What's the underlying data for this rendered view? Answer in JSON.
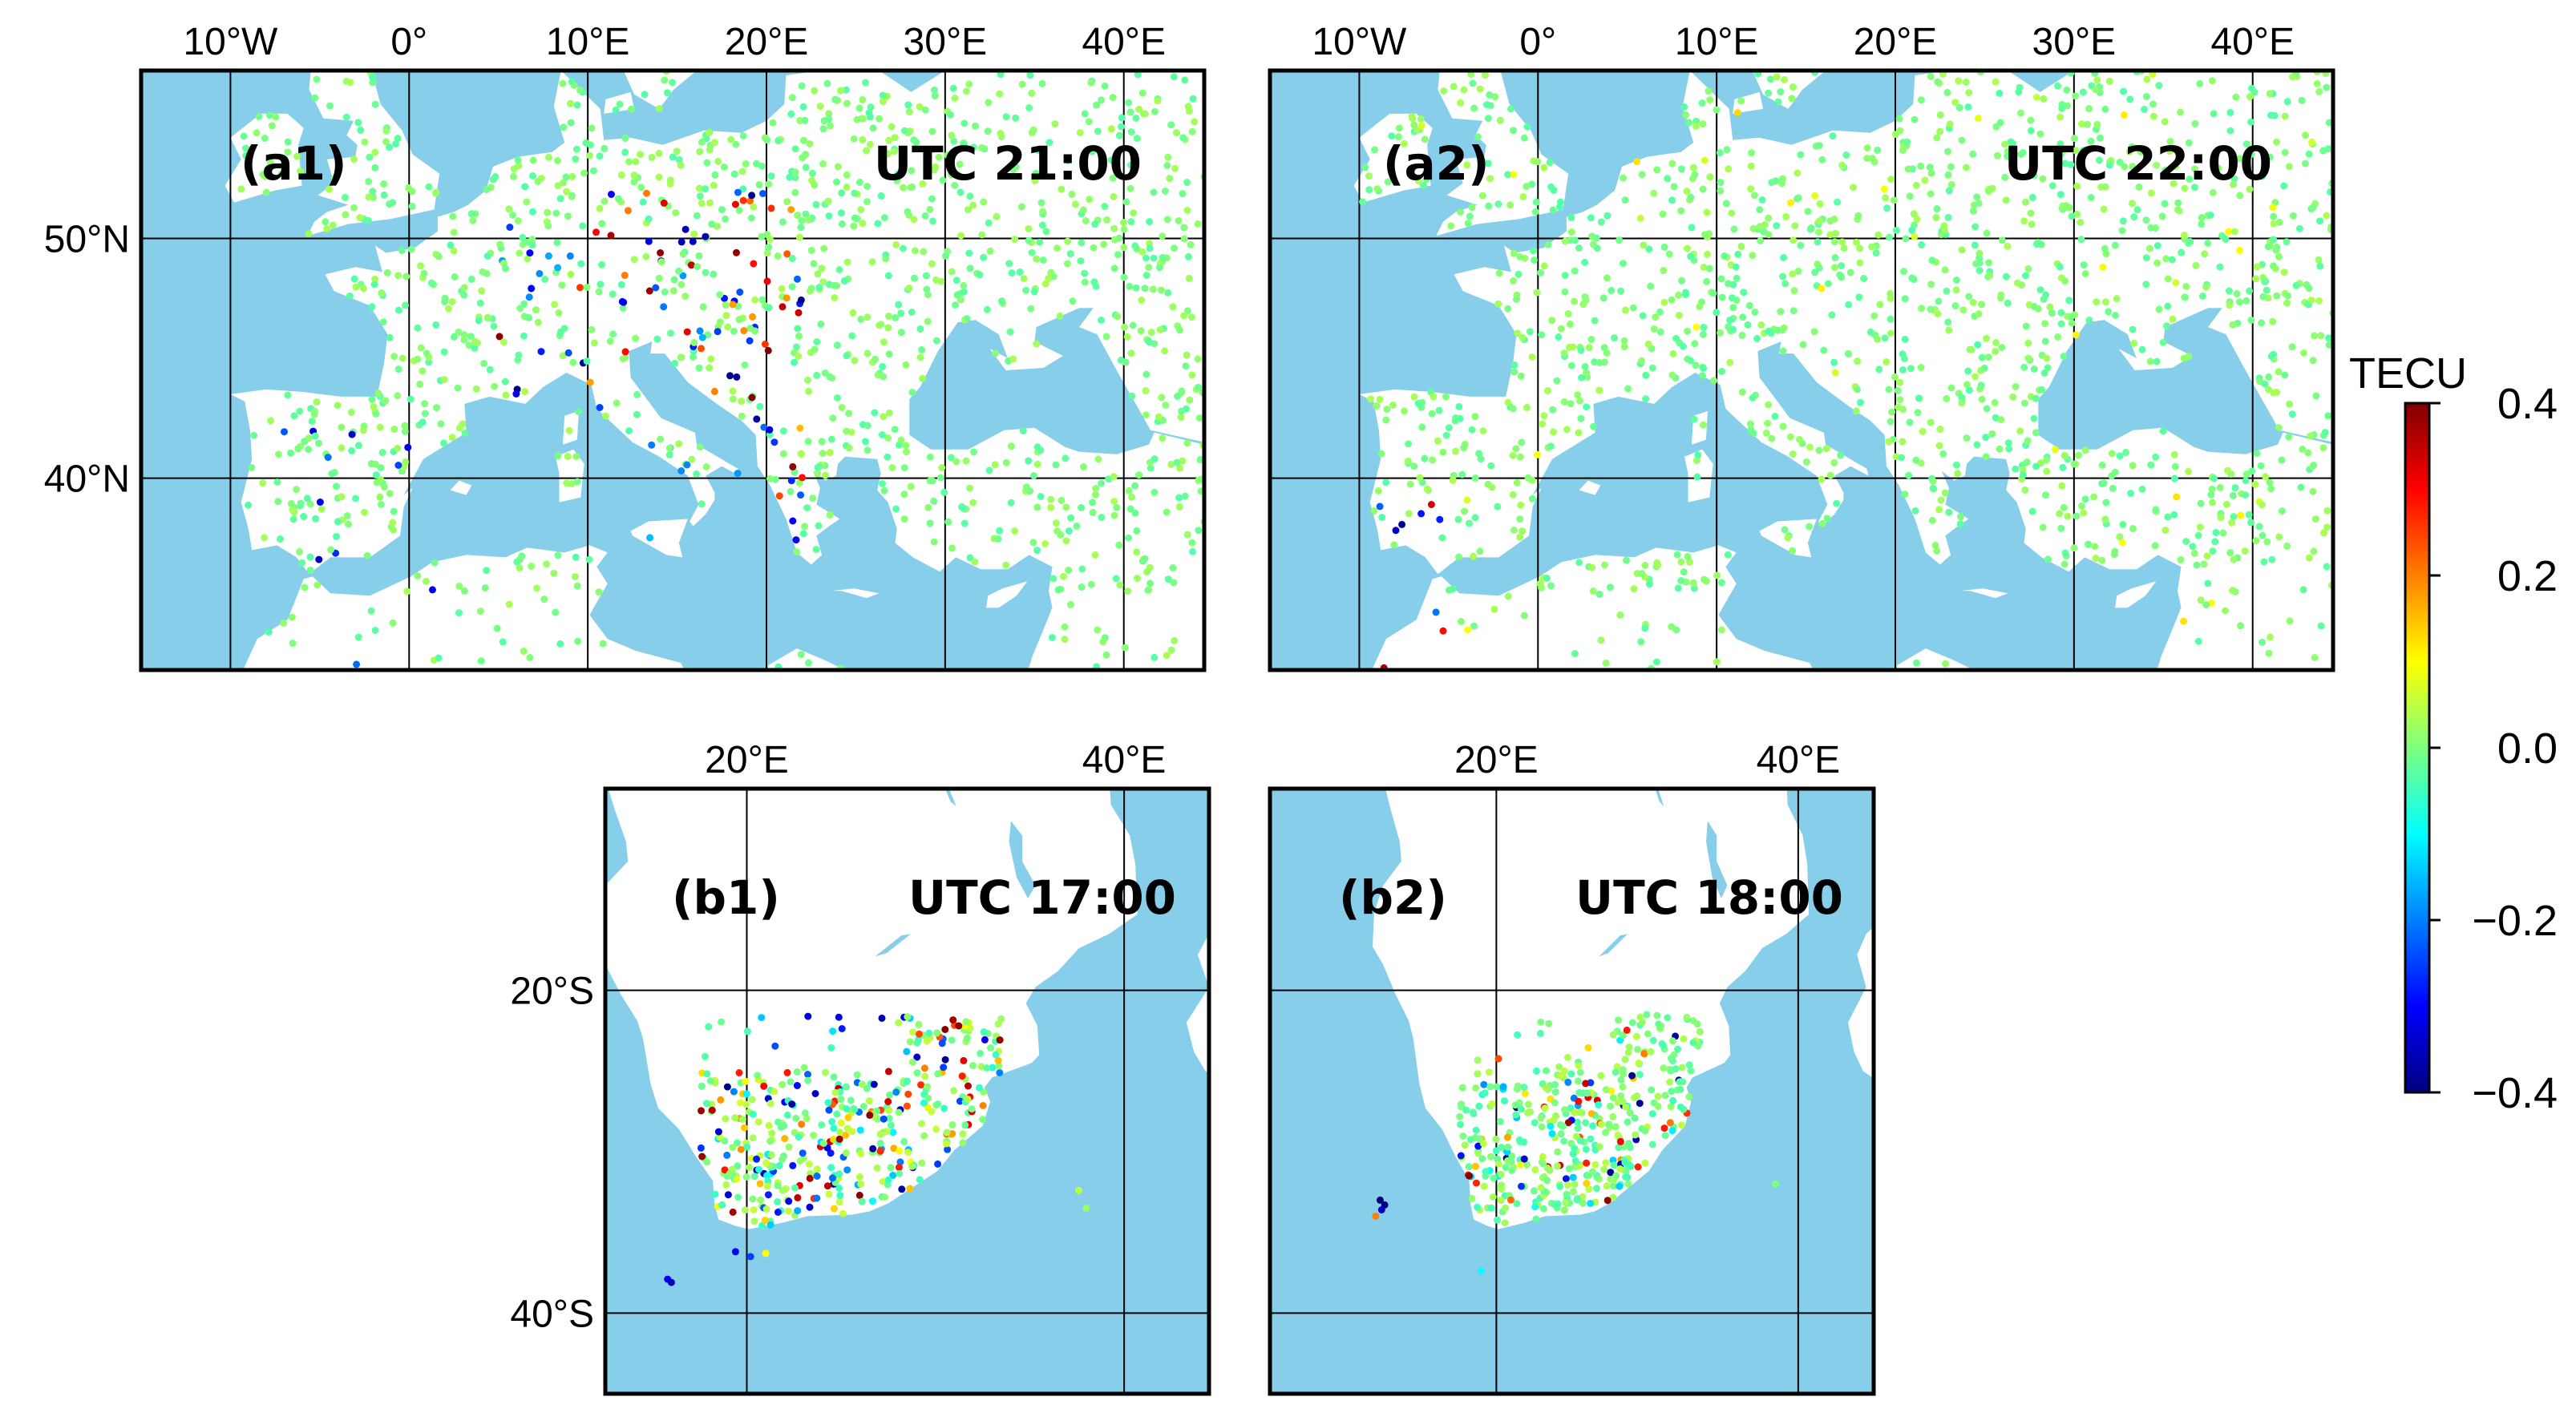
{
  "colors": {
    "sea": "#87ceeb",
    "land": "#ffffff",
    "grid": "#000000",
    "colormap": [
      "#00007f",
      "#0000ff",
      "#007fff",
      "#00ffff",
      "#7fff7f",
      "#ffff00",
      "#ff7f00",
      "#ff0000",
      "#7f0000"
    ]
  },
  "colorbar": {
    "title": "TECU",
    "range": [
      -0.4,
      0.4
    ],
    "ticks": [
      {
        "value": 0.4,
        "label": "0.4"
      },
      {
        "value": 0.2,
        "label": "0.2"
      },
      {
        "value": 0.0,
        "label": "0.0"
      },
      {
        "value": -0.2,
        "label": "−0.2"
      },
      {
        "value": -0.4,
        "label": "−0.4"
      }
    ]
  },
  "panels": [
    {
      "id": "a1",
      "tag": "(a1)",
      "time": "UTC 21:00",
      "region": "europe",
      "lon_range": [
        -15,
        44.5
      ],
      "lat_range": [
        32,
        57
      ],
      "lon_ticks": [
        {
          "v": -10,
          "label": "10°W"
        },
        {
          "v": 0,
          "label": "0°"
        },
        {
          "v": 10,
          "label": "10°E"
        },
        {
          "v": 20,
          "label": "20°E"
        },
        {
          "v": 30,
          "label": "30°E"
        },
        {
          "v": 40,
          "label": "40°E"
        }
      ],
      "lat_ticks": [
        {
          "v": 50,
          "label": "50°N"
        },
        {
          "v": 40,
          "label": "40°N"
        }
      ]
    },
    {
      "id": "a2",
      "tag": "(a2)",
      "time": "UTC 22:00",
      "region": "europe",
      "lon_range": [
        -15,
        44.5
      ],
      "lat_range": [
        32,
        57
      ],
      "lon_ticks": [
        {
          "v": -10,
          "label": "10°W"
        },
        {
          "v": 0,
          "label": "0°"
        },
        {
          "v": 10,
          "label": "10°E"
        },
        {
          "v": 20,
          "label": "20°E"
        },
        {
          "v": 30,
          "label": "30°E"
        },
        {
          "v": 40,
          "label": "40°E"
        }
      ],
      "lat_ticks": []
    },
    {
      "id": "b1",
      "tag": "(b1)",
      "time": "UTC 17:00",
      "region": "africa",
      "lon_range": [
        12.5,
        44.5
      ],
      "lat_range": [
        -45,
        -7.5
      ],
      "lon_ticks": [
        {
          "v": 20,
          "label": "20°E"
        },
        {
          "v": 40,
          "label": "40°E"
        }
      ],
      "lat_ticks": [
        {
          "v": -20,
          "label": "20°S"
        },
        {
          "v": -40,
          "label": "40°S"
        }
      ]
    },
    {
      "id": "b2",
      "tag": "(b2)",
      "time": "UTC 18:00",
      "region": "africa",
      "lon_range": [
        5,
        45
      ],
      "lat_range": [
        -45,
        -7.5
      ],
      "lon_ticks": [
        {
          "v": 20,
          "label": "20°E"
        },
        {
          "v": 40,
          "label": "40°E"
        }
      ],
      "lat_ticks": []
    }
  ]
}
